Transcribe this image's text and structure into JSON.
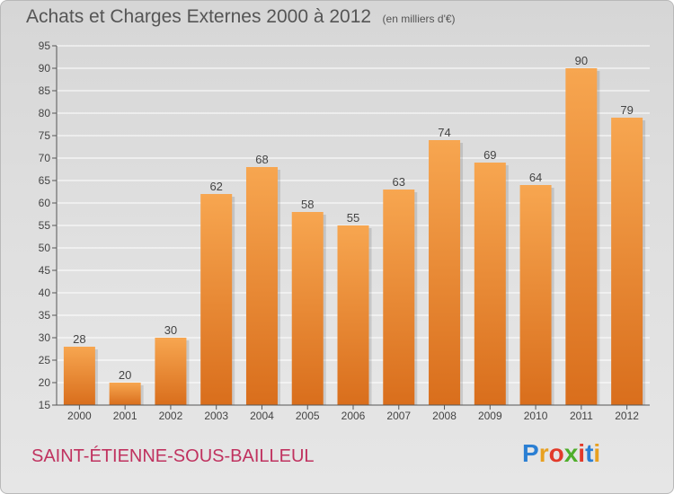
{
  "header": {
    "title": "Achats et Charges Externes 2000 à 2012",
    "unit": "(en milliers d'€)"
  },
  "footer": {
    "commune": "SAINT-ÉTIENNE-SOUS-BAILLEUL",
    "logo_letters": [
      "P",
      "r",
      "o",
      "x",
      "i",
      "t",
      "i"
    ],
    "logo_colors": [
      "#2b7fd3",
      "#e8a020",
      "#e23a2a",
      "#4fae2c",
      "#e23a2a",
      "#2b7fd3",
      "#e8a020"
    ]
  },
  "chart_data": {
    "type": "bar",
    "categories": [
      "2000",
      "2001",
      "2002",
      "2003",
      "2004",
      "2005",
      "2006",
      "2007",
      "2008",
      "2009",
      "2010",
      "2011",
      "2012"
    ],
    "values": [
      28,
      20,
      30,
      62,
      68,
      58,
      55,
      63,
      74,
      69,
      64,
      90,
      79
    ],
    "ylim": [
      15,
      95
    ],
    "yticks": [
      15,
      20,
      25,
      30,
      35,
      40,
      45,
      50,
      55,
      60,
      65,
      70,
      75,
      80,
      85,
      90,
      95
    ],
    "grid": true,
    "bar_color_top": "#f7a650",
    "bar_color_bottom": "#d96e1c"
  }
}
